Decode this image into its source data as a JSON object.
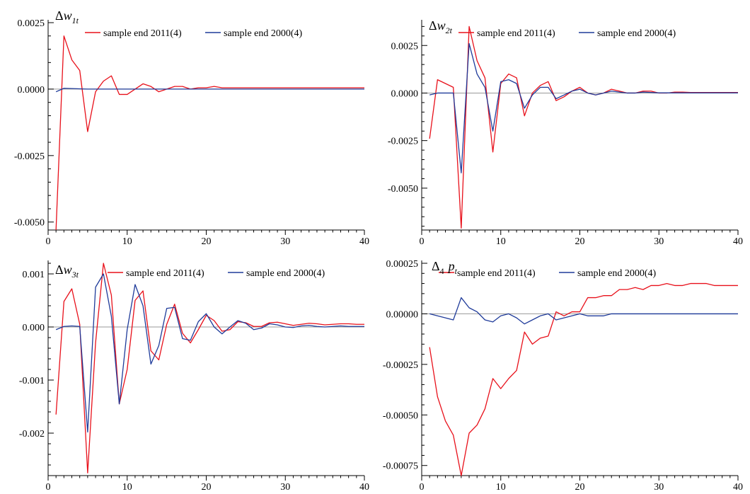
{
  "colors": {
    "red": "#e8101a",
    "blue": "#1f3b9a",
    "axis": "#000000",
    "zero_line": "#9a9a9a"
  },
  "chart_data": [
    {
      "type": "line",
      "title": "Δw1t",
      "title_parts": {
        "delta": "Δ",
        "sub_pre": "",
        "base": "w",
        "sub": "1t"
      },
      "x_ticks": [
        "0",
        "10",
        "20",
        "30",
        "40"
      ],
      "y_ticks": [
        {
          "v": 0.0025,
          "label": "0.0025"
        },
        {
          "v": 0,
          "label": "0.0000"
        },
        {
          "v": -0.0025,
          "label": "-0.0025"
        },
        {
          "v": -0.005,
          "label": "-0.0050"
        }
      ],
      "xlim": [
        0,
        40
      ],
      "ylim": [
        -0.0053,
        0.0025
      ],
      "legend_position": "top",
      "x": [
        1,
        2,
        3,
        4,
        5,
        6,
        7,
        8,
        9,
        10,
        11,
        12,
        13,
        14,
        15,
        16,
        17,
        18,
        19,
        20,
        21,
        22,
        23,
        24,
        25,
        26,
        27,
        28,
        29,
        30,
        31,
        32,
        33,
        34,
        35,
        36,
        37,
        38,
        39,
        40
      ],
      "series": [
        {
          "name": "sample end 2011(4)",
          "color": "#e8101a",
          "values": [
            -0.0053,
            0.002,
            0.0011,
            0.0007,
            -0.0016,
            -0.0001,
            0.0003,
            0.0005,
            -0.0002,
            -0.0002,
            0.0,
            0.0002,
            0.0001,
            -0.0001,
            0.0,
            0.0001,
            0.0001,
            0.0,
            5e-05,
            5e-05,
            0.0001,
            5e-05,
            5e-05,
            5e-05,
            5e-05,
            5e-05,
            5e-05,
            5e-05,
            5e-05,
            5e-05,
            5e-05,
            5e-05,
            5e-05,
            5e-05,
            5e-05,
            5e-05,
            5e-05,
            5e-05,
            5e-05,
            5e-05
          ]
        },
        {
          "name": "sample end 2000(4)",
          "color": "#1f3b9a",
          "values": [
            -0.0001,
            3e-05,
            2e-05,
            1e-05,
            0.0,
            0.0,
            0.0,
            0.0,
            0.0,
            0.0,
            0.0,
            0.0,
            0.0,
            0.0,
            0.0,
            0.0,
            0.0,
            0.0,
            0.0,
            0.0,
            0.0,
            0.0,
            0.0,
            0.0,
            0.0,
            0.0,
            0.0,
            0.0,
            0.0,
            0.0,
            0.0,
            0.0,
            0.0,
            0.0,
            0.0,
            0.0,
            0.0,
            0.0,
            0.0,
            0.0
          ]
        }
      ]
    },
    {
      "type": "line",
      "title": "Δw2t",
      "title_parts": {
        "delta": "Δ",
        "sub_pre": "",
        "base": "w",
        "sub": "2t"
      },
      "x_ticks": [
        "0",
        "10",
        "20",
        "30",
        "40"
      ],
      "y_ticks": [
        {
          "v": 0.0025,
          "label": "0.0025"
        },
        {
          "v": 0,
          "label": "0.0000"
        },
        {
          "v": -0.0025,
          "label": "-0.0025"
        },
        {
          "v": -0.005,
          "label": "-0.0050"
        }
      ],
      "xlim": [
        0,
        40
      ],
      "ylim": [
        -0.0072,
        0.0037
      ],
      "legend_position": "top",
      "x": [
        1,
        2,
        3,
        4,
        5,
        6,
        7,
        8,
        9,
        10,
        11,
        12,
        13,
        14,
        15,
        16,
        17,
        18,
        19,
        20,
        21,
        22,
        23,
        24,
        25,
        26,
        27,
        28,
        29,
        30,
        31,
        32,
        33,
        34,
        35,
        36,
        37,
        38,
        39,
        40
      ],
      "series": [
        {
          "name": "sample end 2011(4)",
          "color": "#e8101a",
          "values": [
            -0.0024,
            0.0007,
            0.0005,
            0.0003,
            -0.0071,
            0.0035,
            0.0017,
            0.0008,
            -0.0031,
            0.0005,
            0.001,
            0.0008,
            -0.0012,
            0.0,
            0.0004,
            0.0006,
            -0.0004,
            -0.0002,
            0.0001,
            0.0003,
            0.0,
            -0.0001,
            0.0,
            0.0002,
            0.0001,
            0.0,
            0.0,
            0.0001,
            0.0001,
            0.0,
            0.0,
            5e-05,
            5e-05,
            3e-05,
            3e-05,
            3e-05,
            3e-05,
            3e-05,
            3e-05,
            3e-05
          ]
        },
        {
          "name": "sample end 2000(4)",
          "color": "#1f3b9a",
          "values": [
            -0.0001,
            0.0,
            0.0,
            0.0,
            -0.0042,
            0.0026,
            0.001,
            0.0003,
            -0.002,
            0.0006,
            0.0007,
            0.0005,
            -0.0008,
            -0.0001,
            0.0003,
            0.0003,
            -0.0003,
            -0.0001,
            0.0001,
            0.0002,
            0.0,
            -0.0001,
            0.0,
            0.0001,
            5e-05,
            0.0,
            0.0,
            5e-05,
            3e-05,
            1e-05,
            1e-05,
            1e-05,
            1e-05,
            1e-05,
            1e-05,
            1e-05,
            1e-05,
            1e-05,
            1e-05,
            1e-05
          ]
        }
      ]
    },
    {
      "type": "line",
      "title": "Δw3t",
      "title_parts": {
        "delta": "Δ",
        "sub_pre": "",
        "base": "w",
        "sub": "3t"
      },
      "x_ticks": [
        "0",
        "10",
        "20",
        "30",
        "40"
      ],
      "y_ticks": [
        {
          "v": 0.001,
          "label": "0.001"
        },
        {
          "v": 0,
          "label": "0.000"
        },
        {
          "v": -0.001,
          "label": "-0.001"
        },
        {
          "v": -0.002,
          "label": "-0.002"
        }
      ],
      "xlim": [
        0,
        40
      ],
      "ylim": [
        -0.0028,
        0.0012
      ],
      "legend_position": "top",
      "x": [
        1,
        2,
        3,
        4,
        5,
        6,
        7,
        8,
        9,
        10,
        11,
        12,
        13,
        14,
        15,
        16,
        17,
        18,
        19,
        20,
        21,
        22,
        23,
        24,
        25,
        26,
        27,
        28,
        29,
        30,
        31,
        32,
        33,
        34,
        35,
        36,
        37,
        38,
        39,
        40
      ],
      "series": [
        {
          "name": "sample end 2011(4)",
          "color": "#e8101a",
          "values": [
            -0.00165,
            0.00048,
            0.00072,
            5e-05,
            -0.00275,
            -0.0003,
            0.0012,
            0.0006,
            -0.00145,
            -0.0008,
            0.0005,
            0.00068,
            -0.00045,
            -0.00062,
            5e-05,
            0.00043,
            -0.00012,
            -0.0003,
            -5e-05,
            0.00022,
            0.00012,
            -8e-05,
            -5e-05,
            0.0001,
            8e-05,
            1e-05,
            1e-05,
            8e-05,
            9e-05,
            6e-05,
            3e-05,
            5e-05,
            7e-05,
            6e-05,
            4e-05,
            5e-05,
            6e-05,
            6e-05,
            5e-05,
            5e-05
          ]
        },
        {
          "name": "sample end 2000(4)",
          "color": "#1f3b9a",
          "values": [
            -5e-05,
            1e-05,
            2e-05,
            1e-05,
            -0.00198,
            0.00075,
            0.001,
            0.0002,
            -0.00145,
            -5e-05,
            0.0008,
            0.0004,
            -0.0007,
            -0.00035,
            0.00035,
            0.00037,
            -0.00022,
            -0.00025,
            0.0001,
            0.00025,
            0.0,
            -0.00013,
            0.0,
            0.00012,
            7e-05,
            -5e-05,
            -2e-05,
            6e-05,
            4e-05,
            0.0,
            -1e-05,
            2e-05,
            3e-05,
            1e-05,
            0.0,
            1e-05,
            2e-05,
            1e-05,
            1e-05,
            1e-05
          ]
        }
      ]
    },
    {
      "type": "line",
      "title": "Δ4 pt",
      "title_parts": {
        "delta": "Δ",
        "sub_pre": "4",
        "base": "p",
        "sub": "t"
      },
      "x_ticks": [
        "0",
        "10",
        "20",
        "30",
        "40"
      ],
      "y_ticks": [
        {
          "v": 0.00025,
          "label": "0.00025"
        },
        {
          "v": 0,
          "label": "0.00000"
        },
        {
          "v": -0.00025,
          "label": "-0.00025"
        },
        {
          "v": -0.0005,
          "label": "-0.00050"
        },
        {
          "v": -0.00075,
          "label": "-0.00075"
        }
      ],
      "xlim": [
        0,
        40
      ],
      "ylim": [
        -0.0008,
        0.00025
      ],
      "legend_position": "top",
      "x": [
        1,
        2,
        3,
        4,
        5,
        6,
        7,
        8,
        9,
        10,
        11,
        12,
        13,
        14,
        15,
        16,
        17,
        18,
        19,
        20,
        21,
        22,
        23,
        24,
        25,
        26,
        27,
        28,
        29,
        30,
        31,
        32,
        33,
        34,
        35,
        36,
        37,
        38,
        39,
        40
      ],
      "series": [
        {
          "name": "sample end 2011(4)",
          "color": "#e8101a",
          "values": [
            -0.000165,
            -0.00041,
            -0.00053,
            -0.0006,
            -0.0008,
            -0.00059,
            -0.00055,
            -0.00047,
            -0.00032,
            -0.00037,
            -0.00032,
            -0.00028,
            -9e-05,
            -0.00015,
            -0.00012,
            -0.00011,
            1e-05,
            -1e-05,
            1e-05,
            1e-05,
            8e-05,
            8e-05,
            9e-05,
            9e-05,
            0.00012,
            0.00012,
            0.00013,
            0.00012,
            0.00014,
            0.00014,
            0.00015,
            0.00014,
            0.00014,
            0.00015,
            0.00015,
            0.00015,
            0.00014,
            0.00014,
            0.00014,
            0.00014
          ]
        },
        {
          "name": "sample end 2000(4)",
          "color": "#1f3b9a",
          "values": [
            0.0,
            -1e-05,
            -2e-05,
            -3e-05,
            8e-05,
            3e-05,
            1e-05,
            -3e-05,
            -4e-05,
            -1e-05,
            0.0,
            -2e-05,
            -5e-05,
            -3e-05,
            -1e-05,
            0.0,
            -3e-05,
            -2e-05,
            -1e-05,
            0.0,
            -1e-05,
            -1e-05,
            -1e-05,
            0.0,
            0.0,
            0.0,
            0.0,
            0.0,
            0.0,
            0.0,
            0.0,
            0.0,
            0.0,
            0.0,
            0.0,
            0.0,
            0.0,
            0.0,
            0.0,
            0.0
          ]
        }
      ]
    }
  ]
}
